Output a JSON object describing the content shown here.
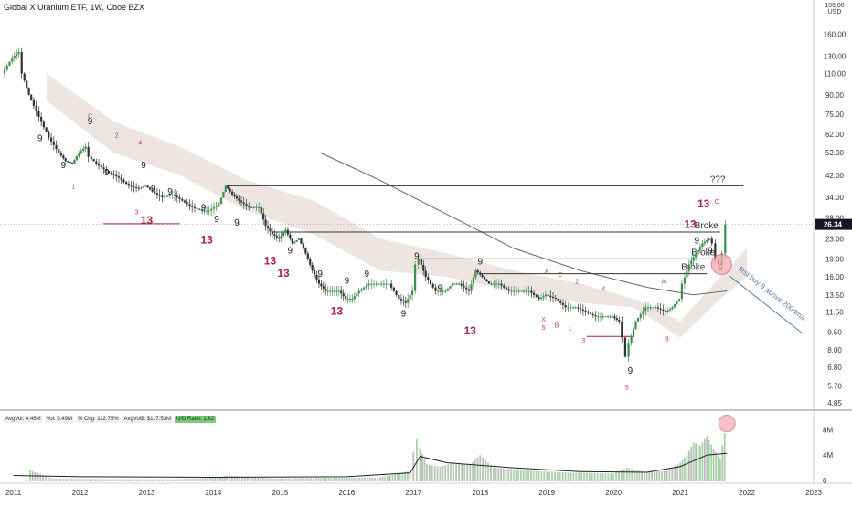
{
  "header": {
    "title": "Global X Uranium ETF, 1W, Cboe BZX",
    "currency_top": "196.00",
    "currency_unit": "USD"
  },
  "volume_stats": {
    "avgvol": "AvgVol: 4.46M",
    "vol": "Vol: 9.49M",
    "chg": "% Chg: 112.75%",
    "avgdollar": "AvgVol$: $117.53M",
    "ud_ratio": "U/D Ratio: 1.82"
  },
  "price_tag": "26.34",
  "colors": {
    "up": "#3c8f4a",
    "down": "#333333",
    "cloud": "#e9e1dc",
    "count_nine": "#222222",
    "count_thirteen": "#b0203a",
    "count_small": "#c04050",
    "level_line": "#333333",
    "volume_up": "#a3d9a0",
    "volume_down": "#bdbdbd",
    "highlight": "#f4a8b0",
    "arrow": "#5a7fa8",
    "price_tag": "#131722"
  },
  "chart_data": {
    "type": "candlestick",
    "title": "Global X Uranium ETF, 1W, Cboe BZX",
    "y_scale": "log",
    "price_ticks": [
      "160.00",
      "130.00",
      "110.00",
      "90.00",
      "75.00",
      "62.00",
      "52.00",
      "42.00",
      "34.00",
      "28.00",
      "23.00",
      "19.00",
      "16.00",
      "13.50",
      "11.50",
      "9.50",
      "8.00",
      "6.80",
      "5.70",
      "4.85"
    ],
    "x_ticks": [
      "2011",
      "2012",
      "2013",
      "2014",
      "2015",
      "2016",
      "2017",
      "2018",
      "2019",
      "2020",
      "2021",
      "2022",
      "2023"
    ],
    "price_path": [
      [
        2010.85,
        110
      ],
      [
        2011.0,
        128
      ],
      [
        2011.1,
        135
      ],
      [
        2011.15,
        110
      ],
      [
        2011.25,
        90
      ],
      [
        2011.4,
        73
      ],
      [
        2011.55,
        60
      ],
      [
        2011.7,
        52
      ],
      [
        2011.8,
        48
      ],
      [
        2011.9,
        47
      ],
      [
        2012.0,
        52
      ],
      [
        2012.1,
        55
      ],
      [
        2012.15,
        50
      ],
      [
        2012.3,
        46
      ],
      [
        2012.45,
        43
      ],
      [
        2012.6,
        41
      ],
      [
        2012.75,
        38
      ],
      [
        2012.9,
        37
      ],
      [
        2013.0,
        38
      ],
      [
        2013.1,
        36
      ],
      [
        2013.25,
        34
      ],
      [
        2013.4,
        35
      ],
      [
        2013.55,
        33
      ],
      [
        2013.7,
        31
      ],
      [
        2013.85,
        30
      ],
      [
        2013.95,
        30
      ],
      [
        2014.1,
        32
      ],
      [
        2014.2,
        38
      ],
      [
        2014.3,
        35
      ],
      [
        2014.4,
        33
      ],
      [
        2014.55,
        31
      ],
      [
        2014.7,
        31
      ],
      [
        2014.8,
        26
      ],
      [
        2014.9,
        24
      ],
      [
        2015.0,
        23
      ],
      [
        2015.1,
        25
      ],
      [
        2015.2,
        22
      ],
      [
        2015.3,
        23
      ],
      [
        2015.4,
        20
      ],
      [
        2015.5,
        17
      ],
      [
        2015.6,
        15
      ],
      [
        2015.7,
        14
      ],
      [
        2015.8,
        14
      ],
      [
        2015.9,
        14
      ],
      [
        2016.0,
        13
      ],
      [
        2016.1,
        13
      ],
      [
        2016.2,
        14
      ],
      [
        2016.35,
        15
      ],
      [
        2016.5,
        15
      ],
      [
        2016.65,
        15
      ],
      [
        2016.8,
        13
      ],
      [
        2016.9,
        12.5
      ],
      [
        2017.0,
        14
      ],
      [
        2017.05,
        18
      ],
      [
        2017.1,
        19
      ],
      [
        2017.2,
        16
      ],
      [
        2017.35,
        14
      ],
      [
        2017.5,
        14
      ],
      [
        2017.6,
        15
      ],
      [
        2017.7,
        15
      ],
      [
        2017.85,
        14
      ],
      [
        2017.95,
        17
      ],
      [
        2018.05,
        16
      ],
      [
        2018.15,
        15
      ],
      [
        2018.3,
        15
      ],
      [
        2018.45,
        14
      ],
      [
        2018.6,
        14
      ],
      [
        2018.75,
        14
      ],
      [
        2018.9,
        13
      ],
      [
        2019.0,
        13.5
      ],
      [
        2019.15,
        13
      ],
      [
        2019.3,
        12
      ],
      [
        2019.45,
        12
      ],
      [
        2019.6,
        11.5
      ],
      [
        2019.75,
        11
      ],
      [
        2019.9,
        11
      ],
      [
        2020.0,
        11
      ],
      [
        2020.1,
        10.5
      ],
      [
        2020.15,
        9
      ],
      [
        2020.2,
        7.5
      ],
      [
        2020.25,
        8.5
      ],
      [
        2020.35,
        10.5
      ],
      [
        2020.5,
        12
      ],
      [
        2020.65,
        12
      ],
      [
        2020.8,
        11.5
      ],
      [
        2020.9,
        12
      ],
      [
        2021.0,
        13
      ],
      [
        2021.05,
        15
      ],
      [
        2021.15,
        18
      ],
      [
        2021.25,
        20
      ],
      [
        2021.35,
        22
      ],
      [
        2021.45,
        23
      ],
      [
        2021.5,
        22
      ],
      [
        2021.55,
        19
      ],
      [
        2021.6,
        18
      ],
      [
        2021.65,
        20
      ],
      [
        2021.7,
        26.34
      ]
    ],
    "moving_average_long": [
      [
        2015.6,
        52
      ],
      [
        2016.5,
        40
      ],
      [
        2017.5,
        29
      ],
      [
        2018.5,
        21
      ],
      [
        2019.5,
        17
      ],
      [
        2020.5,
        14.5
      ],
      [
        2021.2,
        13.5
      ],
      [
        2021.7,
        14
      ]
    ],
    "cloud_upper": [
      [
        2011.5,
        110
      ],
      [
        2012.5,
        70
      ],
      [
        2013.5,
        55
      ],
      [
        2014.5,
        40
      ],
      [
        2015.5,
        33
      ],
      [
        2016.5,
        23
      ],
      [
        2017.5,
        20
      ],
      [
        2018.5,
        17
      ],
      [
        2019.5,
        15
      ],
      [
        2020.3,
        13
      ],
      [
        2021.0,
        10.5
      ],
      [
        2021.6,
        16
      ],
      [
        2022.0,
        21
      ]
    ],
    "cloud_lower": [
      [
        2011.5,
        85
      ],
      [
        2012.5,
        52
      ],
      [
        2013.5,
        42
      ],
      [
        2014.5,
        30
      ],
      [
        2015.5,
        24
      ],
      [
        2016.5,
        17
      ],
      [
        2017.5,
        16
      ],
      [
        2018.5,
        14
      ],
      [
        2019.5,
        12.5
      ],
      [
        2020.3,
        12
      ],
      [
        2021.0,
        9
      ],
      [
        2021.6,
        13
      ],
      [
        2022.0,
        16
      ]
    ],
    "levels": [
      {
        "price": 38,
        "x_from": 2014.2,
        "x_to": 2021.95,
        "label": "???"
      },
      {
        "price": 24.5,
        "x_from": 2014.9,
        "x_to": 2021.6,
        "label": "Broke"
      },
      {
        "price": 19,
        "x_from": 2017.1,
        "x_to": 2021.55,
        "label": "Broke"
      },
      {
        "price": 16.5,
        "x_from": 2018.0,
        "x_to": 2021.4,
        "label": "Broke"
      }
    ],
    "red_levels": [
      {
        "price": 26.5,
        "x_from": 2012.35,
        "x_to": 2013.5
      },
      {
        "price": 9.1,
        "x_from": 2019.6,
        "x_to": 2020.3
      }
    ],
    "counts_nine": [
      [
        2012.15,
        68
      ],
      [
        2011.4,
        58
      ],
      [
        2011.75,
        45
      ],
      [
        2012.95,
        45
      ],
      [
        2012.4,
        42
      ],
      [
        2013.1,
        36
      ],
      [
        2013.35,
        35
      ],
      [
        2013.85,
        30
      ],
      [
        2014.05,
        27
      ],
      [
        2014.35,
        26
      ],
      [
        2015.15,
        20
      ],
      [
        2015.6,
        16
      ],
      [
        2016.3,
        16
      ],
      [
        2016.85,
        11
      ],
      [
        2017.05,
        19
      ],
      [
        2018.0,
        18
      ],
      [
        2020.25,
        6.4
      ],
      [
        2021.25,
        22
      ],
      [
        2021.45,
        20
      ],
      [
        2021.6,
        17
      ],
      [
        2016.0,
        15
      ],
      [
        2017.4,
        14
      ]
    ],
    "counts_thirteen": [
      [
        2013.0,
        26.5
      ],
      [
        2013.9,
        22
      ],
      [
        2014.85,
        18
      ],
      [
        2015.05,
        16
      ],
      [
        2015.85,
        11.2
      ],
      [
        2017.85,
        9.3
      ],
      [
        2021.15,
        25.5
      ],
      [
        2021.35,
        31
      ]
    ],
    "counts_small": [
      {
        "x": 2012.15,
        "price": 72,
        "text": "C"
      },
      {
        "x": 2012.55,
        "price": 60,
        "text": "2"
      },
      {
        "x": 2012.9,
        "price": 56,
        "text": "4"
      },
      {
        "x": 2011.9,
        "price": 37,
        "text": "1"
      },
      {
        "x": 2012.85,
        "price": 29,
        "text": "3"
      },
      {
        "x": 2019.0,
        "price": 16.5,
        "text": "A"
      },
      {
        "x": 2019.2,
        "price": 16,
        "text": "C"
      },
      {
        "x": 2019.45,
        "price": 15,
        "text": "2"
      },
      {
        "x": 2019.85,
        "price": 14,
        "text": "4"
      },
      {
        "x": 2018.95,
        "price": 10.5,
        "text": "X"
      },
      {
        "x": 2018.95,
        "price": 9.7,
        "text": "5"
      },
      {
        "x": 2019.15,
        "price": 9.9,
        "text": "B"
      },
      {
        "x": 2019.35,
        "price": 9.6,
        "text": "1"
      },
      {
        "x": 2019.55,
        "price": 8.6,
        "text": "3"
      },
      {
        "x": 2020.2,
        "price": 5.5,
        "text": "5"
      },
      {
        "x": 2020.75,
        "price": 15,
        "text": "A"
      },
      {
        "x": 2020.8,
        "price": 8.7,
        "text": "B"
      },
      {
        "x": 2021.55,
        "price": 32,
        "text": "C"
      }
    ],
    "annotation_text": "first buy 9 above 200dma",
    "volume": {
      "ticks": [
        "8M",
        "4M",
        "0"
      ],
      "axis_max": 9.5,
      "bars": [
        [
          2011.2,
          0.3
        ],
        [
          2011.25,
          1.6
        ],
        [
          2011.6,
          0.3
        ],
        [
          2012.5,
          0.2
        ],
        [
          2013.5,
          0.2
        ],
        [
          2014.1,
          0.5
        ],
        [
          2014.2,
          0.8
        ],
        [
          2014.9,
          0.3
        ],
        [
          2015.5,
          0.4
        ],
        [
          2016.5,
          0.5
        ],
        [
          2016.95,
          1.5
        ],
        [
          2017.0,
          4.5
        ],
        [
          2017.05,
          6.5
        ],
        [
          2017.1,
          5.0
        ],
        [
          2017.2,
          2.5
        ],
        [
          2017.4,
          2.2
        ],
        [
          2017.6,
          2.8
        ],
        [
          2017.85,
          2.5
        ],
        [
          2018.0,
          4.0
        ],
        [
          2018.2,
          2.0
        ],
        [
          2018.5,
          1.8
        ],
        [
          2018.8,
          1.5
        ],
        [
          2019.2,
          1.3
        ],
        [
          2019.6,
          1.2
        ],
        [
          2020.0,
          1.1
        ],
        [
          2020.2,
          2.0
        ],
        [
          2020.5,
          1.3
        ],
        [
          2020.8,
          1.5
        ],
        [
          2021.0,
          2.8
        ],
        [
          2021.1,
          4.0
        ],
        [
          2021.2,
          6.0
        ],
        [
          2021.3,
          5.5
        ],
        [
          2021.4,
          7.0
        ],
        [
          2021.5,
          5.0
        ],
        [
          2021.6,
          3.5
        ],
        [
          2021.7,
          9.5
        ]
      ],
      "ma": [
        [
          2011.0,
          0.8
        ],
        [
          2012.0,
          0.6
        ],
        [
          2014.0,
          0.5
        ],
        [
          2016.0,
          0.6
        ],
        [
          2016.95,
          1.2
        ],
        [
          2017.1,
          3.8
        ],
        [
          2017.5,
          2.8
        ],
        [
          2018.5,
          2.0
        ],
        [
          2019.5,
          1.4
        ],
        [
          2020.5,
          1.3
        ],
        [
          2021.0,
          2.2
        ],
        [
          2021.4,
          4.0
        ],
        [
          2021.7,
          4.3
        ]
      ]
    }
  }
}
